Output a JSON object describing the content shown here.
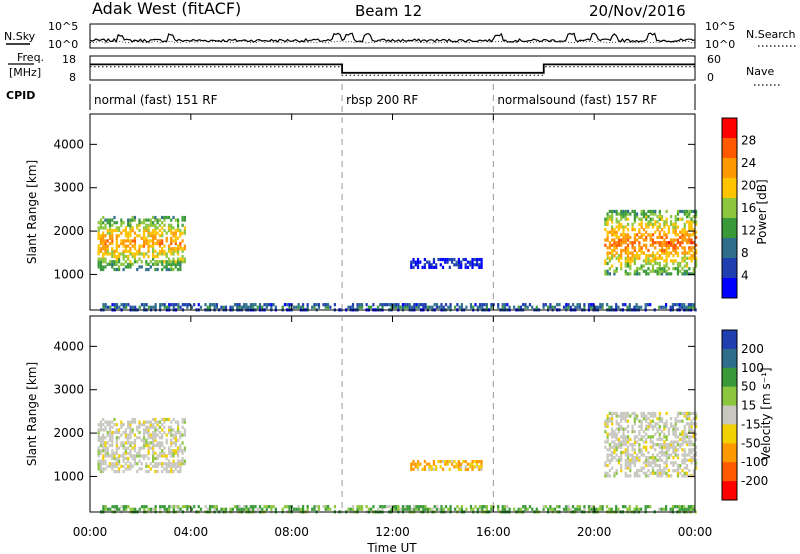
{
  "header": {
    "station": "Adak West (fitACF)",
    "beam": "Beam 12",
    "date": "20/Nov/2016"
  },
  "sky_panel": {
    "left_label": "N.Sky",
    "right_label": "N.Search",
    "left_ticks": [
      "10^5",
      "10^0"
    ],
    "right_ticks": [
      "10^5",
      "10^0"
    ]
  },
  "freq_panel": {
    "left_label_1": "Freq.",
    "left_label_2": "[MHz]",
    "right_label": "Nave",
    "left_ticks": [
      "18",
      "8"
    ],
    "right_ticks": [
      "60",
      "0"
    ]
  },
  "cpid": {
    "label": "CPID",
    "segments": [
      {
        "label": "normal (fast) 151 RF",
        "start": 0,
        "end": 10
      },
      {
        "label": "rbsp 200 RF",
        "start": 10,
        "end": 16
      },
      {
        "label": "normalsound (fast) 157 RF",
        "start": 16,
        "end": 24
      }
    ]
  },
  "power_panel": {
    "ylabel": "Slant Range [km]",
    "colorbar_label": "Power [dB]",
    "colorbar_ticks": [
      "28",
      "24",
      "20",
      "16",
      "12",
      "8",
      "4"
    ],
    "colors": [
      "#ff0000",
      "#ff5a00",
      "#ff9900",
      "#ffc400",
      "#8cc63f",
      "#3a9a3a",
      "#2e6e8c",
      "#1f3fb0",
      "#0000ff"
    ]
  },
  "velocity_panel": {
    "ylabel": "Slant Range [km]",
    "colorbar_label": "Velocity [m s⁻¹]",
    "colorbar_ticks": [
      "200",
      "100",
      "50",
      "15",
      "-15",
      "-50",
      "-100",
      "-200"
    ],
    "colors": [
      "#1f3fb0",
      "#2e6e8c",
      "#3a9a3a",
      "#8cc63f",
      "#c8c8c0",
      "#f2d000",
      "#ff9900",
      "#ff5a00",
      "#ff0000"
    ]
  },
  "x_axis": {
    "label": "Time UT",
    "ticks": [
      "00:00",
      "04:00",
      "08:00",
      "12:00",
      "16:00",
      "20:00",
      "00:00"
    ]
  },
  "y_axis": {
    "ticks": [
      "1000",
      "2000",
      "3000",
      "4000"
    ]
  },
  "chart_data": {
    "type": "heatmap",
    "title": "Adak West (fitACF)",
    "subtitle": "Beam 12",
    "date": "20/Nov/2016",
    "xlabel": "Time UT",
    "ylabel": "Slant Range [km]",
    "xlim": [
      0,
      24
    ],
    "ylim": [
      180,
      4700
    ],
    "xticks": [
      0,
      4,
      8,
      12,
      16,
      20,
      24
    ],
    "yticks": [
      1000,
      2000,
      3000,
      4000
    ],
    "frequency_MHz": [
      {
        "start": 0,
        "end": 10,
        "value": 14.5
      },
      {
        "start": 10,
        "end": 18,
        "value": 11
      },
      {
        "start": 18,
        "end": 24,
        "value": 14.5
      }
    ],
    "nave": [
      {
        "start": 0,
        "end": 10,
        "value": 33
      },
      {
        "start": 10,
        "end": 18,
        "value": 12
      },
      {
        "start": 18,
        "end": 24,
        "value": 33
      }
    ],
    "nsky_spikes_h": [
      1.2,
      3.2,
      9.8,
      10.3,
      11.0,
      16.2,
      19.1,
      20.0,
      20.8,
      22.3
    ],
    "power_regions": [
      {
        "t0": 0.3,
        "t1": 3.8,
        "r0": 1150,
        "r1": 2400,
        "peak": 22
      },
      {
        "t0": 20.4,
        "t1": 24.0,
        "r0": 1050,
        "r1": 2500,
        "peak": 24
      },
      {
        "t0": 0.4,
        "t1": 24.0,
        "r0": 220,
        "r1": 360,
        "peak": 10
      },
      {
        "t0": 12.7,
        "t1": 15.5,
        "r0": 1200,
        "r1": 1400,
        "peak": 5
      }
    ],
    "velocity_regions": [
      {
        "t0": 0.3,
        "t1": 3.8,
        "r0": 1150,
        "r1": 2400,
        "value": 0
      },
      {
        "t0": 20.4,
        "t1": 24.0,
        "r0": 1050,
        "r1": 2500,
        "value": 0
      },
      {
        "t0": 10.0,
        "t1": 16.0,
        "r0": 220,
        "r1": 360,
        "value": 30
      },
      {
        "t0": 12.8,
        "t1": 15.0,
        "r0": 1200,
        "r1": 1400,
        "value": -30
      }
    ]
  }
}
